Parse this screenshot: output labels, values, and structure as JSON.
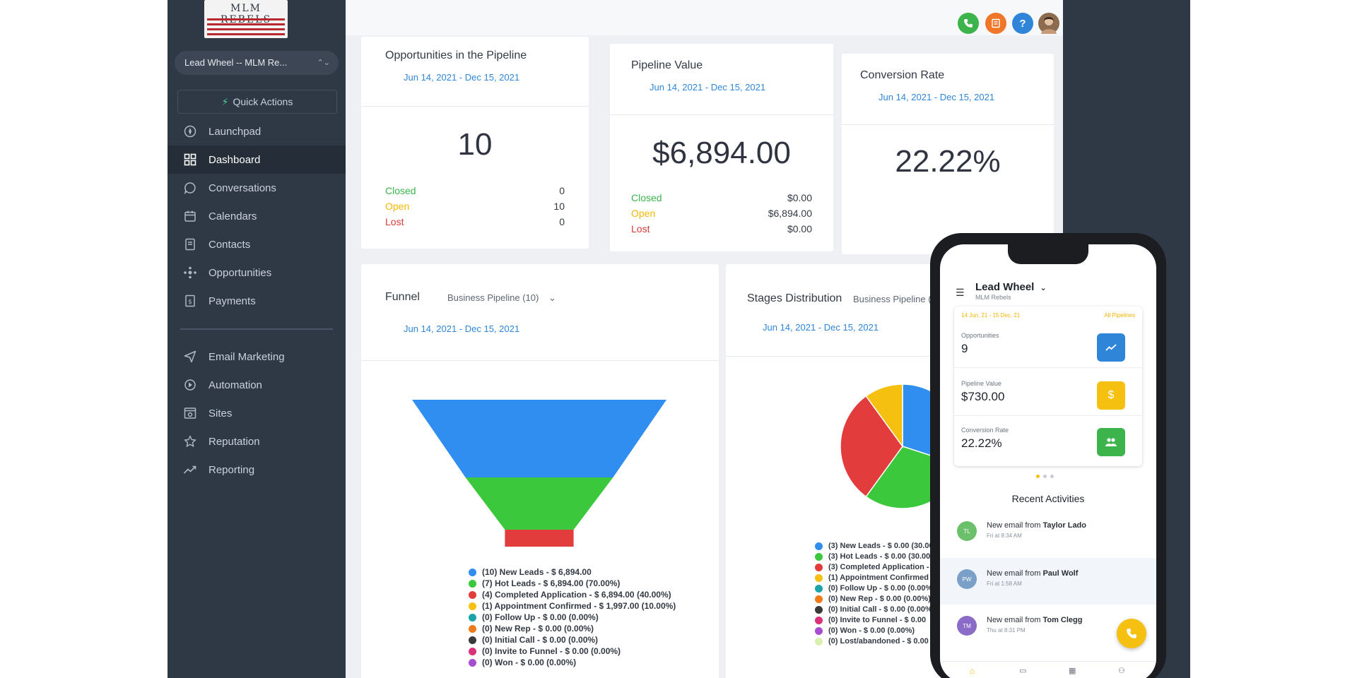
{
  "sidebar": {
    "logo_text": "MLM REBELS",
    "location": "Lead Wheel -- MLM Re...",
    "quick_actions": "Quick Actions",
    "items": [
      {
        "label": "Launchpad",
        "icon": "rocket-icon"
      },
      {
        "label": "Dashboard",
        "icon": "grid-icon",
        "active": true
      },
      {
        "label": "Conversations",
        "icon": "chat-icon"
      },
      {
        "label": "Calendars",
        "icon": "calendar-icon"
      },
      {
        "label": "Contacts",
        "icon": "contacts-icon"
      },
      {
        "label": "Opportunities",
        "icon": "opportunities-icon"
      },
      {
        "label": "Payments",
        "icon": "payments-icon"
      }
    ],
    "items2": [
      {
        "label": "Email Marketing",
        "icon": "send-icon"
      },
      {
        "label": "Automation",
        "icon": "automation-icon"
      },
      {
        "label": "Sites",
        "icon": "sites-icon"
      },
      {
        "label": "Reputation",
        "icon": "star-icon"
      },
      {
        "label": "Reporting",
        "icon": "trend-icon"
      }
    ]
  },
  "topbar": {
    "icons": [
      {
        "name": "phone-icon",
        "color": "#3cb44b"
      },
      {
        "name": "notes-icon",
        "color": "#f0772a"
      },
      {
        "name": "help-icon",
        "color": "#2f86d8",
        "glyph": "?"
      },
      {
        "name": "user-avatar",
        "color": "#8d6b4f"
      }
    ]
  },
  "cards": {
    "opportunities": {
      "title": "Opportunities in the Pipeline",
      "date": "Jun 14, 2021 - Dec 15, 2021",
      "value": "10",
      "closed_label": "Closed",
      "closed": "0",
      "open_label": "Open",
      "open": "10",
      "lost_label": "Lost",
      "lost": "0"
    },
    "pipeline_value": {
      "title": "Pipeline Value",
      "date": "Jun 14, 2021 - Dec 15, 2021",
      "value": "$6,894.00",
      "closed_label": "Closed",
      "closed": "$0.00",
      "open_label": "Open",
      "open": "$6,894.00",
      "lost_label": "Lost",
      "lost": "$0.00"
    },
    "conversion": {
      "title": "Conversion Rate",
      "date": "Jun 14, 2021 - Dec 15, 2021",
      "value": "22.22%"
    },
    "funnel": {
      "title": "Funnel",
      "pipeline": "Business Pipeline (10)",
      "date": "Jun 14, 2021 - Dec 15, 2021"
    },
    "stages": {
      "title": "Stages Distribution",
      "pipeline": "Business Pipeline (",
      "date": "Jun 14, 2021 - Dec 15, 2021"
    }
  },
  "chart_data": [
    {
      "type": "funnel",
      "categories": [
        "New Leads",
        "Hot Leads",
        "Completed Application",
        "Appointment Confirmed",
        "Follow Up",
        "New Rep",
        "Initial Call",
        "Invite to Funnel",
        "Won"
      ],
      "counts": [
        10,
        7,
        4,
        1,
        0,
        0,
        0,
        0,
        0
      ],
      "colors": [
        "#2f8ef0",
        "#3cc83c",
        "#e23c3c",
        "#f5c010",
        "#1aa3a8",
        "#f07a1a",
        "#3a3a3a",
        "#d9317a",
        "#a84cd0"
      ],
      "legend": [
        "(10) New Leads - $ 6,894.00",
        "(7) Hot Leads - $ 6,894.00 (70.00%)",
        "(4) Completed Application - $ 6,894.00 (40.00%)",
        "(1) Appointment Confirmed - $ 1,997.00 (10.00%)",
        "(0) Follow Up - $ 0.00 (0.00%)",
        "(0) New Rep - $ 0.00 (0.00%)",
        "(0) Initial Call - $ 0.00 (0.00%)",
        "(0) Invite to Funnel - $ 0.00 (0.00%)",
        "(0) Won - $ 0.00 (0.00%)"
      ]
    },
    {
      "type": "pie",
      "categories": [
        "New Leads",
        "Hot Leads",
        "Completed Application",
        "Appointment Confirmed"
      ],
      "values": [
        3,
        3,
        3,
        1
      ],
      "colors": [
        "#2f8ef0",
        "#3cc83c",
        "#e23c3c",
        "#f5c010"
      ],
      "legend": [
        {
          "text": "(3) New Leads - $ 0.00 (30.00",
          "color": "#2f8ef0"
        },
        {
          "text": "(3) Hot Leads - $ 0.00 (30.00%)",
          "color": "#3cc83c"
        },
        {
          "text": "(3) Completed Application -",
          "color": "#e23c3c"
        },
        {
          "text": "(1) Appointment Confirmed -",
          "color": "#f5c010"
        },
        {
          "text": "(0) Follow Up - $ 0.00 (0.00%)",
          "color": "#1aa3a8"
        },
        {
          "text": "(0) New Rep - $ 0.00 (0.00%)",
          "color": "#f07a1a"
        },
        {
          "text": "(0) Initial Call - $ 0.00 (0.00%)",
          "color": "#3a3a3a"
        },
        {
          "text": "(0) Invite to Funnel - $ 0.00",
          "color": "#d9317a"
        },
        {
          "text": "(0) Won - $ 0.00 (0.00%)",
          "color": "#a84cd0"
        },
        {
          "text": "(0) Lost/abandoned - $ 0.00",
          "color": "#d9efb0"
        }
      ]
    }
  ],
  "phone": {
    "title": "Lead Wheel",
    "subtitle": "MLM Rebels",
    "range": "14 Jun, 21 - 15 Dec, 21",
    "pipelines": "All Pipelines",
    "opp_label": "Opportunities",
    "opp_value": "9",
    "pv_label": "Pipeline Value",
    "pv_value": "$730.00",
    "cr_label": "Conversion Rate",
    "cr_value": "22.22%",
    "recent": "Recent Activities",
    "activities": [
      {
        "initials": "TL",
        "prefix": "New email from",
        "name": "Taylor Lado",
        "time": "Fri at 8:34 AM",
        "color": "#6cc06c"
      },
      {
        "initials": "PW",
        "prefix": "New email from",
        "name": "Paul Wolf",
        "time": "Fri at 1:58 AM",
        "color": "#7aa0c8"
      },
      {
        "initials": "TM",
        "prefix": "New email from",
        "name": "Tom Clegg",
        "time": "Thu at 8:31 PM",
        "color": "#8a6cc8"
      }
    ]
  }
}
